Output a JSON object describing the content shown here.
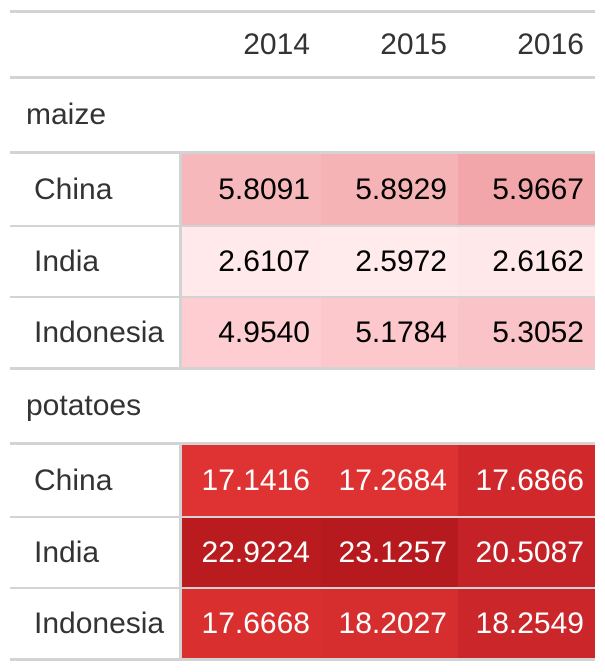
{
  "chart_data": {
    "type": "table",
    "columns": [
      "2014",
      "2015",
      "2016"
    ],
    "groups": [
      {
        "name": "maize",
        "rows": [
          {
            "label": "China",
            "values": [
              "5.8091",
              "5.8929",
              "5.9667"
            ],
            "colors": [
              "#f7b8bb",
              "#f6b3b6",
              "#f3a6aa"
            ],
            "text_colors": [
              "#000000",
              "#000000",
              "#000000"
            ]
          },
          {
            "label": "India",
            "values": [
              "2.6107",
              "2.5972",
              "2.6162"
            ],
            "colors": [
              "#ffe9eb",
              "#ffeaec",
              "#ffe8ea"
            ],
            "text_colors": [
              "#000000",
              "#000000",
              "#000000"
            ]
          },
          {
            "label": "Indonesia",
            "values": [
              "4.9540",
              "5.1784",
              "5.3052"
            ],
            "colors": [
              "#fdcdd1",
              "#fcc8cc",
              "#fac3c7"
            ],
            "text_colors": [
              "#000000",
              "#000000",
              "#000000"
            ]
          }
        ]
      },
      {
        "name": "potatoes",
        "rows": [
          {
            "label": "China",
            "values": [
              "17.1416",
              "17.2684",
              "17.6866"
            ],
            "colors": [
              "#df3333",
              "#de3132",
              "#d0282b"
            ],
            "text_colors": [
              "#ffffff",
              "#ffffff",
              "#ffffff"
            ]
          },
          {
            "label": "India",
            "values": [
              "22.9224",
              "23.1257",
              "20.5087"
            ],
            "colors": [
              "#b91b1f",
              "#b71a1e",
              "#c42227"
            ],
            "text_colors": [
              "#ffffff",
              "#ffffff",
              "#ffffff"
            ]
          },
          {
            "label": "Indonesia",
            "values": [
              "17.6668",
              "18.2027",
              "18.2549"
            ],
            "colors": [
              "#d9302f",
              "#d62e2e",
              "#cb2629"
            ],
            "text_colors": [
              "#ffffff",
              "#ffffff",
              "#ffffff"
            ]
          }
        ]
      }
    ]
  }
}
